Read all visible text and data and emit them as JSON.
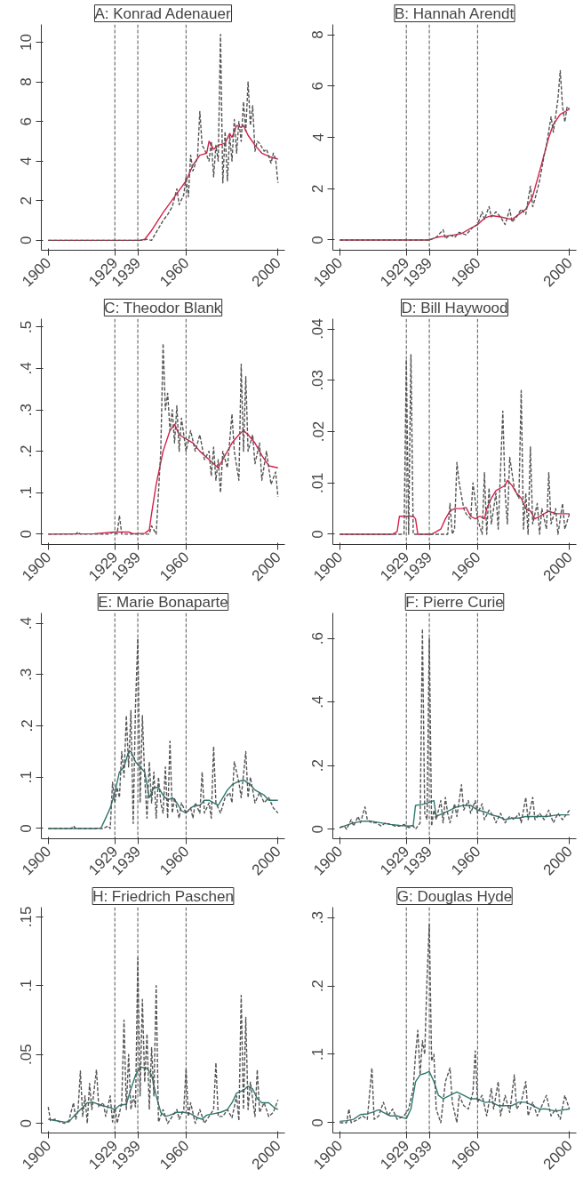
{
  "chart_data": [
    {
      "type": "line",
      "title": "A: Konrad Adenauer",
      "xlim": [
        1897,
        2003
      ],
      "xticks": [
        1900,
        1929,
        1939,
        1960,
        2000
      ],
      "ylim": [
        -0.5,
        10.9
      ],
      "yticks": [
        0,
        2,
        4,
        6,
        8,
        10
      ],
      "grid": false,
      "ref_lines": [
        {
          "axis": "x",
          "value": 1929,
          "color": "#555555",
          "line_style": "dashed"
        },
        {
          "axis": "x",
          "value": 1939,
          "color": "#555555",
          "line_style": "dashed"
        },
        {
          "axis": "x",
          "value": 1960,
          "color": "#555555",
          "line_style": "dashed"
        }
      ],
      "series": [
        {
          "color": "#555555",
          "line_style": "dashed",
          "x": [
            1900,
            1940,
            1943,
            1945,
            1948,
            1950,
            1952,
            1954,
            1956,
            1957,
            1959,
            1960,
            1961,
            1962,
            1963,
            1965,
            1966,
            1967,
            1968,
            1970,
            1971,
            1972,
            1973,
            1974,
            1975,
            1976,
            1977,
            1978,
            1979,
            1980,
            1981,
            1982,
            1983,
            1984,
            1985,
            1986,
            1987,
            1988,
            1989,
            1990,
            1991,
            1992,
            1994,
            1995,
            1997,
            1998,
            1999,
            2000
          ],
          "values": [
            0,
            0,
            0.05,
            0,
            0.6,
            1.0,
            1.3,
            1.7,
            2.6,
            1.8,
            2.3,
            3.2,
            2.2,
            4.3,
            3.5,
            4.2,
            6.5,
            4.8,
            4.6,
            4.0,
            5.0,
            3.2,
            4.8,
            4.0,
            10.4,
            2.9,
            5.5,
            3.0,
            5.3,
            4.0,
            6.1,
            4.4,
            6.0,
            5.0,
            7.0,
            5.5,
            8.0,
            5.8,
            6.8,
            4.5,
            5.0,
            4.9,
            4.5,
            4.6,
            3.9,
            4.4,
            4.1,
            2.9
          ]
        },
        {
          "color": "#d6204a",
          "line_style": "solid",
          "x": [
            1900,
            1940,
            1942,
            1945,
            1950,
            1955,
            1960,
            1963,
            1966,
            1969,
            1970,
            1972,
            1974,
            1977,
            1979,
            1980,
            1982,
            1984,
            1985,
            1987,
            1990,
            1993,
            1997,
            2000
          ],
          "values": [
            0,
            0,
            0.05,
            0.5,
            1.4,
            2.2,
            3.0,
            3.8,
            4.3,
            4.4,
            5.0,
            4.6,
            4.8,
            4.9,
            5.4,
            5.2,
            5.8,
            5.7,
            5.8,
            5.3,
            4.8,
            4.4,
            4.2,
            4.1
          ]
        }
      ]
    },
    {
      "type": "line",
      "title": "B: Hannah Arendt",
      "xlim": [
        1897,
        2003
      ],
      "xticks": [
        1900,
        1929,
        1939,
        1960,
        2000
      ],
      "ylim": [
        -0.4,
        8.4
      ],
      "yticks": [
        0,
        2,
        4,
        6,
        8
      ],
      "grid": false,
      "ref_lines": [
        {
          "axis": "x",
          "value": 1929,
          "color": "#555555",
          "line_style": "dashed"
        },
        {
          "axis": "x",
          "value": 1939,
          "color": "#555555",
          "line_style": "dashed"
        },
        {
          "axis": "x",
          "value": 1960,
          "color": "#555555",
          "line_style": "dashed"
        }
      ],
      "series": [
        {
          "color": "#555555",
          "line_style": "dashed",
          "x": [
            1900,
            1939,
            1942,
            1945,
            1946,
            1948,
            1950,
            1952,
            1955,
            1958,
            1960,
            1962,
            1963,
            1965,
            1966,
            1968,
            1970,
            1972,
            1974,
            1975,
            1977,
            1979,
            1981,
            1983,
            1984,
            1985,
            1987,
            1989,
            1990,
            1992,
            1993,
            1995,
            1996,
            1997,
            1998,
            1999,
            2000
          ],
          "values": [
            0,
            0,
            0.1,
            0.4,
            0.05,
            0.2,
            0.1,
            0.3,
            0.2,
            0.5,
            0.6,
            1.1,
            0.8,
            1.3,
            0.9,
            1.1,
            0.9,
            0.6,
            1.2,
            0.7,
            0.9,
            1.2,
            1.0,
            2.1,
            1.3,
            1.6,
            2.3,
            3.3,
            3.7,
            4.8,
            4.2,
            5.5,
            6.6,
            5.2,
            4.6,
            5.2,
            5.1
          ]
        },
        {
          "color": "#d6204a",
          "line_style": "solid",
          "x": [
            1900,
            1939,
            1942,
            1946,
            1950,
            1953,
            1957,
            1960,
            1963,
            1966,
            1970,
            1975,
            1978,
            1981,
            1984,
            1988,
            1991,
            1993,
            1996,
            2000
          ],
          "values": [
            0,
            0,
            0.1,
            0.15,
            0.2,
            0.25,
            0.45,
            0.6,
            0.85,
            0.95,
            0.9,
            0.8,
            1.0,
            1.2,
            1.7,
            3.0,
            4.0,
            4.5,
            4.9,
            5.1
          ]
        }
      ]
    },
    {
      "type": "line",
      "title": "C: Theodor Blank",
      "xlim": [
        1897,
        2003
      ],
      "xticks": [
        1900,
        1929,
        1939,
        1960,
        2000
      ],
      "ylim": [
        -0.025,
        0.52
      ],
      "yticks": [
        0,
        {
          "value": 0.1,
          "label": ".1"
        },
        {
          "value": 0.2,
          "label": ".2"
        },
        {
          "value": 0.3,
          "label": ".3"
        },
        {
          "value": 0.4,
          "label": ".4"
        },
        {
          "value": 0.5,
          "label": ".5"
        }
      ],
      "grid": false,
      "ref_lines": [
        {
          "axis": "x",
          "value": 1929,
          "color": "#555555",
          "line_style": "dashed"
        },
        {
          "axis": "x",
          "value": 1939,
          "color": "#555555",
          "line_style": "dashed"
        },
        {
          "axis": "x",
          "value": 1960,
          "color": "#555555",
          "line_style": "dashed"
        }
      ],
      "series": [
        {
          "color": "#555555",
          "line_style": "dashed",
          "x": [
            1900,
            1912,
            1913,
            1914,
            1927,
            1928,
            1930,
            1931,
            1932,
            1944,
            1945,
            1947,
            1949,
            1950,
            1951,
            1952,
            1953,
            1954,
            1955,
            1956,
            1957,
            1958,
            1960,
            1962,
            1964,
            1966,
            1968,
            1970,
            1971,
            1972,
            1973,
            1974,
            1975,
            1976,
            1978,
            1980,
            1981,
            1983,
            1984,
            1985,
            1986,
            1987,
            1989,
            1990,
            1992,
            1993,
            1995,
            1997,
            1999,
            2000
          ],
          "values": [
            0,
            0,
            0.005,
            0,
            0,
            0.005,
            0,
            0.045,
            0,
            0,
            0.02,
            0,
            0.2,
            0.46,
            0.3,
            0.34,
            0.25,
            0.3,
            0.22,
            0.31,
            0.2,
            0.28,
            0.2,
            0.25,
            0.2,
            0.24,
            0.18,
            0.2,
            0.14,
            0.21,
            0.13,
            0.18,
            0.1,
            0.2,
            0.16,
            0.29,
            0.2,
            0.13,
            0.41,
            0.2,
            0.38,
            0.2,
            0.24,
            0.17,
            0.22,
            0.13,
            0.2,
            0.12,
            0.15,
            0.09
          ]
        },
        {
          "color": "#d6204a",
          "line_style": "solid",
          "x": [
            1900,
            1920,
            1929,
            1935,
            1937,
            1942,
            1944,
            1945,
            1947,
            1950,
            1953,
            1955,
            1957,
            1960,
            1963,
            1966,
            1970,
            1974,
            1976,
            1978,
            1980,
            1983,
            1985,
            1987,
            1990,
            1993,
            1996,
            2000
          ],
          "values": [
            0,
            0.001,
            0.005,
            0.005,
            0.001,
            0.002,
            0.01,
            0.05,
            0.12,
            0.2,
            0.25,
            0.265,
            0.24,
            0.23,
            0.22,
            0.2,
            0.18,
            0.16,
            0.18,
            0.2,
            0.22,
            0.24,
            0.25,
            0.24,
            0.22,
            0.19,
            0.165,
            0.16
          ]
        }
      ]
    },
    {
      "type": "line",
      "title": "D: Bill Haywood",
      "xlim": [
        1897,
        2003
      ],
      "xticks": [
        1900,
        1929,
        1939,
        1960,
        2000
      ],
      "ylim": [
        -0.002,
        0.042
      ],
      "yticks": [
        0,
        {
          "value": 0.01,
          "label": ".01"
        },
        {
          "value": 0.02,
          "label": ".02"
        },
        {
          "value": 0.03,
          "label": ".03"
        },
        {
          "value": 0.04,
          "label": ".04"
        }
      ],
      "grid": false,
      "ref_lines": [
        {
          "axis": "x",
          "value": 1929,
          "color": "#555555",
          "line_style": "dashed"
        },
        {
          "axis": "x",
          "value": 1939,
          "color": "#555555",
          "line_style": "dashed"
        },
        {
          "axis": "x",
          "value": 1960,
          "color": "#555555",
          "line_style": "dashed"
        }
      ],
      "series": [
        {
          "color": "#555555",
          "line_style": "dashed",
          "x": [
            1900,
            1928,
            1929,
            1930,
            1931,
            1932,
            1947,
            1948,
            1949,
            1950,
            1951,
            1952,
            1954,
            1955,
            1957,
            1958,
            1960,
            1962,
            1963,
            1964,
            1965,
            1966,
            1968,
            1969,
            1971,
            1972,
            1973,
            1974,
            1976,
            1978,
            1979,
            1980,
            1981,
            1982,
            1983,
            1984,
            1986,
            1987,
            1988,
            1990,
            1991,
            1992,
            1994,
            1995,
            1997,
            1998,
            2000
          ],
          "values": [
            0,
            0,
            0.034,
            0,
            0.035,
            0,
            0,
            0.006,
            0,
            0.001,
            0.014,
            0.01,
            0.005,
            0.004,
            0.003,
            0.01,
            0.003,
            0,
            0.012,
            0,
            0.009,
            0.002,
            0.008,
            0.001,
            0.024,
            0.008,
            0.002,
            0.015,
            0.009,
            0.007,
            0.028,
            0.001,
            0.008,
            0,
            0.017,
            0.002,
            0.006,
            0,
            0.005,
            0.001,
            0.012,
            0.002,
            0.005,
            0,
            0.006,
            0.001,
            0.004
          ]
        },
        {
          "color": "#d6204a",
          "line_style": "solid",
          "x": [
            1900,
            1923,
            1925,
            1926,
            1932,
            1933,
            1934,
            1940,
            1942,
            1944,
            1946,
            1948,
            1950,
            1953,
            1955,
            1957,
            1959,
            1961,
            1963,
            1964,
            1966,
            1968,
            1970,
            1972,
            1973,
            1975,
            1977,
            1979,
            1981,
            1983,
            1985,
            1987,
            1989,
            1991,
            1994,
            2000
          ],
          "values": [
            0,
            0,
            0.0005,
            0.0035,
            0.0035,
            0.003,
            0,
            0,
            0.0005,
            0.001,
            0.003,
            0.0045,
            0.005,
            0.005,
            0.0052,
            0.0035,
            0.003,
            0.0035,
            0.003,
            0.005,
            0.007,
            0.0085,
            0.009,
            0.0095,
            0.0105,
            0.0095,
            0.008,
            0.007,
            0.005,
            0.0045,
            0.003,
            0.0035,
            0.004,
            0.0045,
            0.004,
            0.004
          ]
        }
      ]
    },
    {
      "type": "line",
      "title": "E: Marie Bonaparte",
      "xlim": [
        1897,
        2003
      ],
      "xticks": [
        1900,
        1929,
        1939,
        1960,
        2000
      ],
      "ylim": [
        -0.02,
        0.42
      ],
      "yticks": [
        0,
        {
          "value": 0.1,
          "label": ".1"
        },
        {
          "value": 0.2,
          "label": ".2"
        },
        {
          "value": 0.3,
          "label": ".3"
        },
        {
          "value": 0.4,
          "label": ".4"
        }
      ],
      "grid": false,
      "ref_lines": [
        {
          "axis": "x",
          "value": 1929,
          "color": "#555555",
          "line_style": "dashed"
        },
        {
          "axis": "x",
          "value": 1939,
          "color": "#555555",
          "line_style": "dashed"
        },
        {
          "axis": "x",
          "value": 1960,
          "color": "#555555",
          "line_style": "dashed"
        }
      ],
      "series": [
        {
          "color": "#555555",
          "line_style": "dashed",
          "x": [
            1900,
            1910,
            1911,
            1912,
            1924,
            1926,
            1927,
            1928,
            1929,
            1930,
            1931,
            1932,
            1933,
            1934,
            1935,
            1936,
            1937,
            1938,
            1939,
            1940,
            1941,
            1942,
            1943,
            1944,
            1945,
            1946,
            1947,
            1948,
            1949,
            1950,
            1951,
            1952,
            1953,
            1954,
            1955,
            1957,
            1958,
            1960,
            1962,
            1963,
            1964,
            1966,
            1967,
            1968,
            1970,
            1971,
            1972,
            1973,
            1975,
            1977,
            1979,
            1980,
            1981,
            1983,
            1984,
            1986,
            1987,
            1988,
            1990,
            1992,
            1994,
            1996,
            1998,
            2000
          ],
          "values": [
            0,
            0,
            0.005,
            0,
            0,
            0.005,
            0,
            0.09,
            0.05,
            0.08,
            0.06,
            0.15,
            0.1,
            0.22,
            0.12,
            0.23,
            0.01,
            0.24,
            0.37,
            0.05,
            0.22,
            0.1,
            0.02,
            0.13,
            0.05,
            0.11,
            0.02,
            0.1,
            0.05,
            0.03,
            0.12,
            0.02,
            0.17,
            0.03,
            0.06,
            0.02,
            0.05,
            0.03,
            0.04,
            0.02,
            0.05,
            0.03,
            0.11,
            0.03,
            0.05,
            0.02,
            0.16,
            0.05,
            0.03,
            0.06,
            0.07,
            0.05,
            0.13,
            0.09,
            0.06,
            0.15,
            0.06,
            0.1,
            0.05,
            0.07,
            0.05,
            0.06,
            0.04,
            0.03
          ]
        },
        {
          "color": "#2e7a6e",
          "line_style": "solid",
          "x": [
            1900,
            1920,
            1923,
            1925,
            1927,
            1929,
            1931,
            1933,
            1935,
            1936,
            1938,
            1940,
            1942,
            1944,
            1946,
            1948,
            1950,
            1952,
            1954,
            1956,
            1958,
            1960,
            1962,
            1964,
            1966,
            1968,
            1970,
            1972,
            1974,
            1976,
            1978,
            1980,
            1982,
            1985,
            1988,
            1990,
            1992,
            1994,
            1996,
            2000
          ],
          "values": [
            0,
            0,
            0.001,
            0.02,
            0.04,
            0.07,
            0.11,
            0.12,
            0.15,
            0.15,
            0.13,
            0.12,
            0.11,
            0.06,
            0.08,
            0.08,
            0.065,
            0.055,
            0.06,
            0.05,
            0.035,
            0.03,
            0.04,
            0.045,
            0.045,
            0.055,
            0.055,
            0.05,
            0.045,
            0.06,
            0.075,
            0.085,
            0.09,
            0.095,
            0.085,
            0.075,
            0.07,
            0.065,
            0.055,
            0.055
          ]
        }
      ]
    },
    {
      "type": "line",
      "title": "F: Pierre Curie",
      "xlim": [
        1897,
        2003
      ],
      "xticks": [
        1900,
        1929,
        1939,
        1960,
        2000
      ],
      "ylim": [
        -0.03,
        0.68
      ],
      "yticks": [
        0,
        {
          "value": 0.2,
          "label": ".2"
        },
        {
          "value": 0.4,
          "label": ".4"
        },
        {
          "value": 0.6,
          "label": ".6"
        }
      ],
      "grid": false,
      "ref_lines": [
        {
          "axis": "x",
          "value": 1929,
          "color": "#555555",
          "line_style": "dashed"
        },
        {
          "axis": "x",
          "value": 1939,
          "color": "#555555",
          "line_style": "dashed"
        },
        {
          "axis": "x",
          "value": 1960,
          "color": "#555555",
          "line_style": "dashed"
        }
      ],
      "series": [
        {
          "color": "#555555",
          "line_style": "dashed",
          "x": [
            1900,
            1902,
            1903,
            1905,
            1906,
            1908,
            1909,
            1911,
            1912,
            1914,
            1916,
            1918,
            1920,
            1922,
            1924,
            1926,
            1928,
            1930,
            1932,
            1933,
            1935,
            1936,
            1937,
            1938,
            1939,
            1940,
            1941,
            1942,
            1944,
            1945,
            1946,
            1947,
            1948,
            1950,
            1951,
            1953,
            1954,
            1956,
            1957,
            1959,
            1960,
            1962,
            1963,
            1965,
            1967,
            1968,
            1970,
            1972,
            1974,
            1976,
            1978,
            1979,
            1981,
            1982,
            1984,
            1985,
            1987,
            1989,
            1991,
            1993,
            1995,
            1997,
            2000
          ],
          "values": [
            0.005,
            0.01,
            0,
            0.03,
            0.01,
            0.04,
            0.02,
            0.07,
            0.03,
            0.02,
            0.02,
            0.01,
            0.02,
            0.015,
            0.01,
            0.01,
            0.015,
            0.005,
            0.01,
            0,
            0.02,
            0.63,
            0.05,
            0.03,
            0.6,
            0.01,
            0.06,
            0.03,
            0.09,
            0.02,
            0.1,
            0.05,
            0.02,
            0.08,
            0.04,
            0.14,
            0.06,
            0.09,
            0.05,
            0.09,
            0.05,
            0.08,
            0.03,
            0.06,
            0.04,
            0.02,
            0.05,
            0.02,
            0.04,
            0.03,
            0.05,
            0.02,
            0.1,
            0.03,
            0.1,
            0.03,
            0.05,
            0.03,
            0.06,
            0.02,
            0.05,
            0.03,
            0.06
          ]
        },
        {
          "color": "#2e7a6e",
          "line_style": "solid",
          "x": [
            1900,
            1902,
            1906,
            1910,
            1914,
            1918,
            1922,
            1926,
            1930,
            1932,
            1933,
            1936,
            1939,
            1941,
            1942,
            1945,
            1948,
            1951,
            1954,
            1957,
            1960,
            1963,
            1966,
            1969,
            1972,
            1975,
            1978,
            1981,
            1985,
            1990,
            1995,
            2000
          ],
          "values": [
            0.005,
            0.01,
            0.02,
            0.025,
            0.025,
            0.02,
            0.015,
            0.012,
            0.01,
            0.012,
            0.075,
            0.078,
            0.085,
            0.09,
            0.04,
            0.05,
            0.06,
            0.07,
            0.075,
            0.075,
            0.06,
            0.055,
            0.045,
            0.04,
            0.03,
            0.035,
            0.035,
            0.04,
            0.04,
            0.04,
            0.045,
            0.045
          ]
        }
      ]
    },
    {
      "type": "line",
      "title": "H: Friedrich Paschen",
      "xlim": [
        1897,
        2003
      ],
      "xticks": [
        1900,
        1929,
        1939,
        1960,
        2000
      ],
      "ylim": [
        -0.007,
        0.157
      ],
      "yticks": [
        0,
        {
          "value": 0.05,
          "label": ".05"
        },
        {
          "value": 0.1,
          "label": ".1"
        },
        {
          "value": 0.15,
          "label": ".15"
        }
      ],
      "grid": false,
      "ref_lines": [
        {
          "axis": "x",
          "value": 1929,
          "color": "#555555",
          "line_style": "dashed"
        },
        {
          "axis": "x",
          "value": 1939,
          "color": "#555555",
          "line_style": "dashed"
        },
        {
          "axis": "x",
          "value": 1960,
          "color": "#555555",
          "line_style": "dashed"
        }
      ],
      "series": [
        {
          "color": "#555555",
          "line_style": "dashed",
          "x": [
            1900,
            1901,
            1903,
            1905,
            1907,
            1909,
            1911,
            1912,
            1913,
            1914,
            1915,
            1916,
            1917,
            1918,
            1919,
            1921,
            1922,
            1924,
            1925,
            1927,
            1928,
            1929,
            1930,
            1932,
            1933,
            1934,
            1935,
            1936,
            1937,
            1938,
            1939,
            1940,
            1941,
            1942,
            1943,
            1944,
            1945,
            1946,
            1947,
            1948,
            1950,
            1952,
            1954,
            1956,
            1957,
            1959,
            1960,
            1961,
            1962,
            1964,
            1966,
            1968,
            1970,
            1972,
            1973,
            1974,
            1976,
            1978,
            1980,
            1982,
            1983,
            1984,
            1985,
            1986,
            1987,
            1988,
            1990,
            1991,
            1992,
            1994,
            1996,
            1998,
            2000
          ],
          "values": [
            0.012,
            0.002,
            0.003,
            0.001,
            0,
            0.002,
            0.015,
            0.003,
            0.01,
            0.038,
            0.005,
            0.02,
            0,
            0.029,
            0.01,
            0.039,
            0.012,
            0.015,
            0.005,
            0.02,
            0.001,
            0.013,
            0,
            0.015,
            0.075,
            0.01,
            0.05,
            0.01,
            0.02,
            0.012,
            0.12,
            0.02,
            0.09,
            0.03,
            0.065,
            0.01,
            0.055,
            0.02,
            0.1,
            0.001,
            0.01,
            0,
            0.005,
            0.01,
            0.003,
            0.01,
            0.04,
            0.005,
            0.015,
            0,
            0.01,
            0,
            0.005,
            0.01,
            0.044,
            0.005,
            0.005,
            0.01,
            0.004,
            0.02,
            0.002,
            0.093,
            0.01,
            0.077,
            0.01,
            0.03,
            0.005,
            0.039,
            0.008,
            0.015,
            0.005,
            0.008,
            0.017
          ]
        },
        {
          "color": "#2e7a6e",
          "line_style": "solid",
          "x": [
            1900,
            1903,
            1907,
            1909,
            1911,
            1914,
            1917,
            1920,
            1923,
            1926,
            1929,
            1931,
            1934,
            1936,
            1938,
            1940,
            1943,
            1945,
            1947,
            1949,
            1951,
            1953,
            1956,
            1959,
            1962,
            1965,
            1967,
            1969,
            1972,
            1975,
            1978,
            1980,
            1982,
            1985,
            1987,
            1989,
            1991,
            1993,
            1996,
            1998,
            2000
          ],
          "values": [
            0.003,
            0.002,
            0.001,
            0.001,
            0.005,
            0.01,
            0.015,
            0.015,
            0.013,
            0.012,
            0.01,
            0.013,
            0.014,
            0.025,
            0.035,
            0.041,
            0.04,
            0.035,
            0.02,
            0.008,
            0.005,
            0.006,
            0.008,
            0.008,
            0.007,
            0.004,
            0.003,
            0.006,
            0.007,
            0.008,
            0.01,
            0.015,
            0.022,
            0.024,
            0.027,
            0.025,
            0.018,
            0.015,
            0.015,
            0.012,
            0.01
          ]
        }
      ]
    },
    {
      "type": "line",
      "title": "G: Douglas Hyde",
      "xlim": [
        1897,
        2003
      ],
      "xticks": [
        1900,
        1929,
        1939,
        1960,
        2000
      ],
      "ylim": [
        -0.015,
        0.315
      ],
      "yticks": [
        0,
        {
          "value": 0.1,
          "label": ".1"
        },
        {
          "value": 0.2,
          "label": ".2"
        },
        {
          "value": 0.3,
          "label": ".3"
        }
      ],
      "grid": false,
      "ref_lines": [
        {
          "axis": "x",
          "value": 1929,
          "color": "#555555",
          "line_style": "dashed"
        },
        {
          "axis": "x",
          "value": 1939,
          "color": "#555555",
          "line_style": "dashed"
        },
        {
          "axis": "x",
          "value": 1960,
          "color": "#555555",
          "line_style": "dashed"
        }
      ],
      "series": [
        {
          "color": "#555555",
          "line_style": "dashed",
          "x": [
            1900,
            1903,
            1904,
            1905,
            1908,
            1910,
            1912,
            1914,
            1915,
            1917,
            1919,
            1921,
            1923,
            1925,
            1928,
            1930,
            1932,
            1933,
            1934,
            1935,
            1936,
            1937,
            1938,
            1939,
            1940,
            1941,
            1942,
            1944,
            1946,
            1948,
            1949,
            1951,
            1952,
            1954,
            1956,
            1958,
            1959,
            1960,
            1962,
            1964,
            1966,
            1967,
            1969,
            1970,
            1972,
            1974,
            1976,
            1977,
            1979,
            1981,
            1982,
            1984,
            1986,
            1988,
            1990,
            1992,
            1994,
            1996,
            1998,
            2000
          ],
          "values": [
            0,
            0,
            0.02,
            0,
            0.005,
            0.01,
            0.005,
            0.08,
            0.005,
            0.01,
            0.03,
            0.01,
            0.02,
            0.005,
            0.01,
            0.02,
            0.05,
            0.1,
            0.135,
            0.07,
            0.12,
            0.1,
            0.21,
            0.29,
            0.09,
            0.1,
            0.02,
            0,
            0.06,
            0.08,
            0.03,
            0,
            0.04,
            0.025,
            0.02,
            0.045,
            0.105,
            0.03,
            0.04,
            0.01,
            0.05,
            0.02,
            0.06,
            0.01,
            0.04,
            0.015,
            0.07,
            0.02,
            0.03,
            0.06,
            0.01,
            0.03,
            0.01,
            0.025,
            0.04,
            0.01,
            0.02,
            0.005,
            0.04,
            0.02
          ]
        },
        {
          "color": "#2e7a6e",
          "line_style": "solid",
          "x": [
            1900,
            1903,
            1906,
            1909,
            1912,
            1914,
            1917,
            1919,
            1922,
            1925,
            1928,
            1929,
            1931,
            1933,
            1935,
            1937,
            1939,
            1941,
            1943,
            1945,
            1948,
            1951,
            1954,
            1957,
            1960,
            1963,
            1966,
            1969,
            1972,
            1975,
            1978,
            1981,
            1984,
            1987,
            1990,
            1994,
            2000
          ],
          "values": [
            0.002,
            0.003,
            0.005,
            0.012,
            0.013,
            0.015,
            0.019,
            0.015,
            0.01,
            0.01,
            0.007,
            0.006,
            0.02,
            0.06,
            0.07,
            0.072,
            0.075,
            0.06,
            0.04,
            0.035,
            0.04,
            0.045,
            0.04,
            0.035,
            0.035,
            0.03,
            0.03,
            0.025,
            0.025,
            0.025,
            0.03,
            0.03,
            0.025,
            0.02,
            0.02,
            0.017,
            0.02
          ]
        }
      ]
    }
  ]
}
